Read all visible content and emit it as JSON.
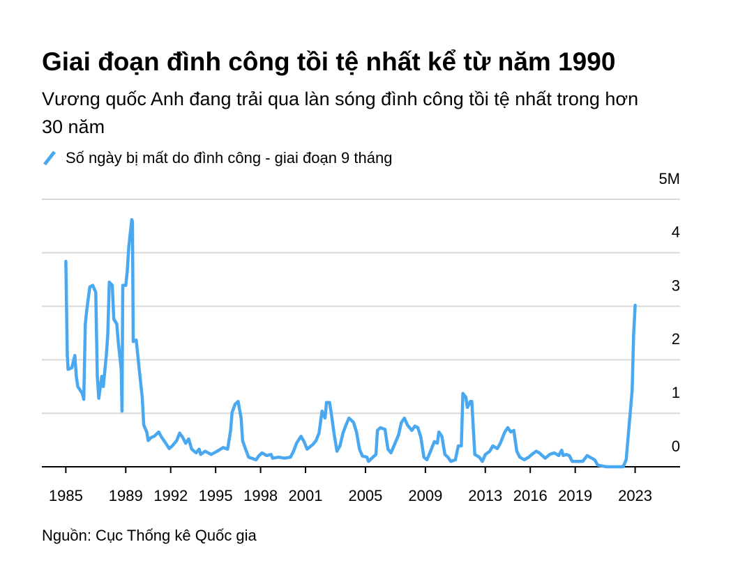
{
  "chart_data": {
    "type": "line",
    "title": "Giai đoạn đình công tồi tệ nhất kể từ năm 1990",
    "subtitle": "Vương quốc Anh đang trải qua làn sóng đình công tồi tệ nhất trong hơn 30 năm",
    "source": "Nguồn: Cục Thống kê Quốc gia",
    "x": [
      1985.0,
      1985.1,
      1985.15,
      1985.4,
      1985.6,
      1985.7,
      1985.8,
      1986.1,
      1986.2,
      1986.3,
      1986.4,
      1986.6,
      1986.8,
      1987.0,
      1987.1,
      1987.2,
      1987.4,
      1987.5,
      1987.7,
      1987.8,
      1987.9,
      1988.1,
      1988.2,
      1988.4,
      1988.5,
      1988.7,
      1988.75,
      1988.8,
      1989.0,
      1989.1,
      1989.2,
      1989.4,
      1989.45,
      1989.5,
      1989.7,
      1989.9,
      1990.1,
      1990.2,
      1990.4,
      1990.5,
      1990.7,
      1990.9,
      1991.2,
      1991.4,
      1991.6,
      1991.9,
      1992.1,
      1992.4,
      1992.6,
      1992.8,
      1993.0,
      1993.2,
      1993.4,
      1993.7,
      1993.9,
      1994.0,
      1994.3,
      1994.7,
      1995.1,
      1995.5,
      1995.8,
      1996.0,
      1996.1,
      1996.3,
      1996.5,
      1996.7,
      1996.8,
      1997.0,
      1997.2,
      1997.4,
      1997.7,
      1997.9,
      1998.1,
      1998.4,
      1998.7,
      1998.8,
      1999.2,
      1999.6,
      2000.0,
      2000.2,
      2000.4,
      2000.7,
      2000.9,
      2001.1,
      2001.5,
      2001.7,
      2001.9,
      2002.1,
      2002.3,
      2002.4,
      2002.6,
      2002.7,
      2002.9,
      2003.1,
      2003.3,
      2003.5,
      2003.7,
      2003.9,
      2004.2,
      2004.4,
      2004.6,
      2004.8,
      2005.1,
      2005.2,
      2005.5,
      2005.7,
      2005.8,
      2006.0,
      2006.3,
      2006.5,
      2006.7,
      2006.9,
      2007.2,
      2007.4,
      2007.6,
      2007.8,
      2008.1,
      2008.3,
      2008.5,
      2008.7,
      2008.9,
      2009.1,
      2009.3,
      2009.6,
      2009.8,
      2009.9,
      2010.1,
      2010.3,
      2010.5,
      2010.7,
      2011.0,
      2011.2,
      2011.4,
      2011.5,
      2011.7,
      2011.8,
      2012.0,
      2012.1,
      2012.3,
      2012.6,
      2012.8,
      2013.0,
      2013.3,
      2013.5,
      2013.8,
      2014.0,
      2014.3,
      2014.5,
      2014.7,
      2014.9,
      2015.1,
      2015.3,
      2015.6,
      2015.9,
      2016.1,
      2016.4,
      2016.6,
      2016.8,
      2017.0,
      2017.3,
      2017.6,
      2017.9,
      2018.1,
      2018.2,
      2018.4,
      2018.6,
      2018.8,
      2019.2,
      2019.5,
      2019.8,
      2020.1,
      2020.3,
      2020.5,
      2021.1,
      2021.7,
      2022.2,
      2022.4,
      2022.6,
      2022.8,
      2022.9,
      2023.0
    ],
    "series": [
      {
        "name": "Số ngày bị mất do đình công - giai đoạn 9 tháng",
        "color": "#4aa8f0",
        "values": [
          3.84,
          2.08,
          1.82,
          1.85,
          2.08,
          1.69,
          1.5,
          1.37,
          1.26,
          2.67,
          2.93,
          3.36,
          3.39,
          3.26,
          1.69,
          1.28,
          1.69,
          1.5,
          2.08,
          2.47,
          3.45,
          3.39,
          2.76,
          2.67,
          2.34,
          1.82,
          1.04,
          3.39,
          3.39,
          3.65,
          4.1,
          4.62,
          4.58,
          2.34,
          2.37,
          1.82,
          1.3,
          0.78,
          0.65,
          0.49,
          0.55,
          0.57,
          0.65,
          0.55,
          0.47,
          0.34,
          0.39,
          0.49,
          0.63,
          0.55,
          0.44,
          0.52,
          0.33,
          0.26,
          0.33,
          0.23,
          0.29,
          0.23,
          0.29,
          0.36,
          0.33,
          0.68,
          1.02,
          1.17,
          1.22,
          0.91,
          0.49,
          0.33,
          0.18,
          0.16,
          0.13,
          0.21,
          0.26,
          0.21,
          0.23,
          0.16,
          0.18,
          0.16,
          0.18,
          0.29,
          0.44,
          0.57,
          0.47,
          0.33,
          0.42,
          0.49,
          0.63,
          1.04,
          0.91,
          1.2,
          1.2,
          1.04,
          0.63,
          0.29,
          0.39,
          0.63,
          0.78,
          0.91,
          0.83,
          0.65,
          0.33,
          0.2,
          0.18,
          0.1,
          0.18,
          0.23,
          0.68,
          0.73,
          0.7,
          0.33,
          0.26,
          0.39,
          0.59,
          0.83,
          0.91,
          0.78,
          0.68,
          0.76,
          0.73,
          0.55,
          0.18,
          0.13,
          0.26,
          0.47,
          0.44,
          0.65,
          0.57,
          0.23,
          0.18,
          0.1,
          0.13,
          0.39,
          0.39,
          1.37,
          1.3,
          1.11,
          1.22,
          1.22,
          0.23,
          0.18,
          0.1,
          0.23,
          0.29,
          0.39,
          0.34,
          0.44,
          0.65,
          0.73,
          0.65,
          0.68,
          0.29,
          0.18,
          0.13,
          0.18,
          0.23,
          0.29,
          0.26,
          0.21,
          0.16,
          0.23,
          0.26,
          0.21,
          0.31,
          0.21,
          0.23,
          0.21,
          0.1,
          0.1,
          0.1,
          0.21,
          0.16,
          0.13,
          0.03,
          0,
          0,
          0,
          0.13,
          0.78,
          1.43,
          2.47,
          3.02
        ]
      }
    ],
    "xlim": [
      1983.4,
      2026
    ],
    "xticks": [
      1985,
      1989,
      1992,
      1995,
      1998,
      2001,
      2005,
      2009,
      2013,
      2016,
      2019,
      2023
    ],
    "ylim": [
      0,
      5
    ],
    "yticks": [
      0,
      1,
      2,
      3,
      4,
      {
        "value": 5,
        "label": "5M"
      }
    ],
    "grid": true
  }
}
